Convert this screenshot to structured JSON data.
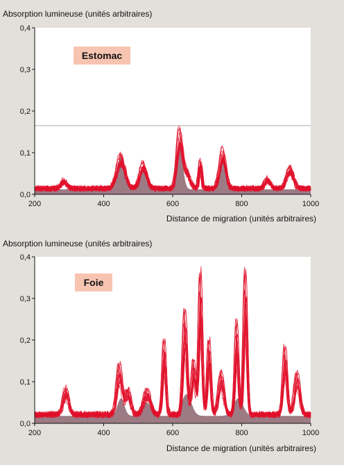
{
  "chart_data": [
    {
      "type": "line",
      "organ_label": "Estomac",
      "ylabel": "Absorption lumineuse (unités arbitraires)",
      "xlabel": "Distance de migration (unités arbitraires)",
      "xlim": [
        200,
        1000
      ],
      "ylim": [
        0,
        0.4
      ],
      "x_ticks": [
        200,
        400,
        600,
        800,
        1000
      ],
      "y_ticks": [
        0,
        0.1,
        0.2,
        0.3,
        0.4
      ],
      "y_tick_labels": [
        "0,0",
        "0,1",
        "0,2",
        "0,3",
        "0,4"
      ],
      "x_tick_labels": [
        "200",
        "400",
        "600",
        "800",
        "1000"
      ],
      "threshold_line": 0.165,
      "line_color": "#e0102a",
      "fill_color": "#9c7b85",
      "baseline": 0.02,
      "peaks": [
        {
          "x": 285,
          "y": 0.035,
          "w": 8
        },
        {
          "x": 450,
          "y": 0.1,
          "w": 12
        },
        {
          "x": 515,
          "y": 0.08,
          "w": 10
        },
        {
          "x": 620,
          "y": 0.16,
          "w": 8
        },
        {
          "x": 640,
          "y": 0.06,
          "w": 10
        },
        {
          "x": 680,
          "y": 0.09,
          "w": 4
        },
        {
          "x": 745,
          "y": 0.115,
          "w": 9
        },
        {
          "x": 875,
          "y": 0.04,
          "w": 8
        },
        {
          "x": 940,
          "y": 0.07,
          "w": 10
        }
      ],
      "fill_peaks": [
        {
          "x": 450,
          "y": 0.09,
          "w": 12
        },
        {
          "x": 515,
          "y": 0.06,
          "w": 10
        },
        {
          "x": 620,
          "y": 0.12,
          "w": 9
        },
        {
          "x": 745,
          "y": 0.09,
          "w": 9
        }
      ]
    },
    {
      "type": "line",
      "organ_label": "Foie",
      "ylabel": "Absorption lumineuse (unités arbitraires)",
      "xlabel": "Distance de migration (unités arbitraires)",
      "xlim": [
        200,
        1000
      ],
      "ylim": [
        0,
        0.4
      ],
      "x_ticks": [
        200,
        400,
        600,
        800,
        1000
      ],
      "y_ticks": [
        0,
        0.1,
        0.2,
        0.3,
        0.4
      ],
      "y_tick_labels": [
        "0,0",
        "0,1",
        "0,2",
        "0,3",
        "0,4"
      ],
      "x_tick_labels": [
        "200",
        "400",
        "600",
        "800",
        "1000"
      ],
      "threshold_line": null,
      "line_color": "#e0102a",
      "fill_color": "#9c7b85",
      "baseline": 0.03,
      "peaks": [
        {
          "x": 290,
          "y": 0.085,
          "w": 8
        },
        {
          "x": 445,
          "y": 0.14,
          "w": 8
        },
        {
          "x": 470,
          "y": 0.08,
          "w": 8
        },
        {
          "x": 525,
          "y": 0.08,
          "w": 10
        },
        {
          "x": 575,
          "y": 0.2,
          "w": 5
        },
        {
          "x": 635,
          "y": 0.27,
          "w": 6
        },
        {
          "x": 660,
          "y": 0.15,
          "w": 6
        },
        {
          "x": 680,
          "y": 0.355,
          "w": 5
        },
        {
          "x": 705,
          "y": 0.2,
          "w": 5
        },
        {
          "x": 740,
          "y": 0.12,
          "w": 8
        },
        {
          "x": 785,
          "y": 0.24,
          "w": 5
        },
        {
          "x": 810,
          "y": 0.36,
          "w": 5
        },
        {
          "x": 925,
          "y": 0.18,
          "w": 6
        },
        {
          "x": 960,
          "y": 0.12,
          "w": 8
        }
      ],
      "fill_peaks": [
        {
          "x": 450,
          "y": 0.06,
          "w": 10
        },
        {
          "x": 525,
          "y": 0.05,
          "w": 12
        },
        {
          "x": 640,
          "y": 0.07,
          "w": 14
        },
        {
          "x": 790,
          "y": 0.06,
          "w": 14
        }
      ]
    }
  ]
}
